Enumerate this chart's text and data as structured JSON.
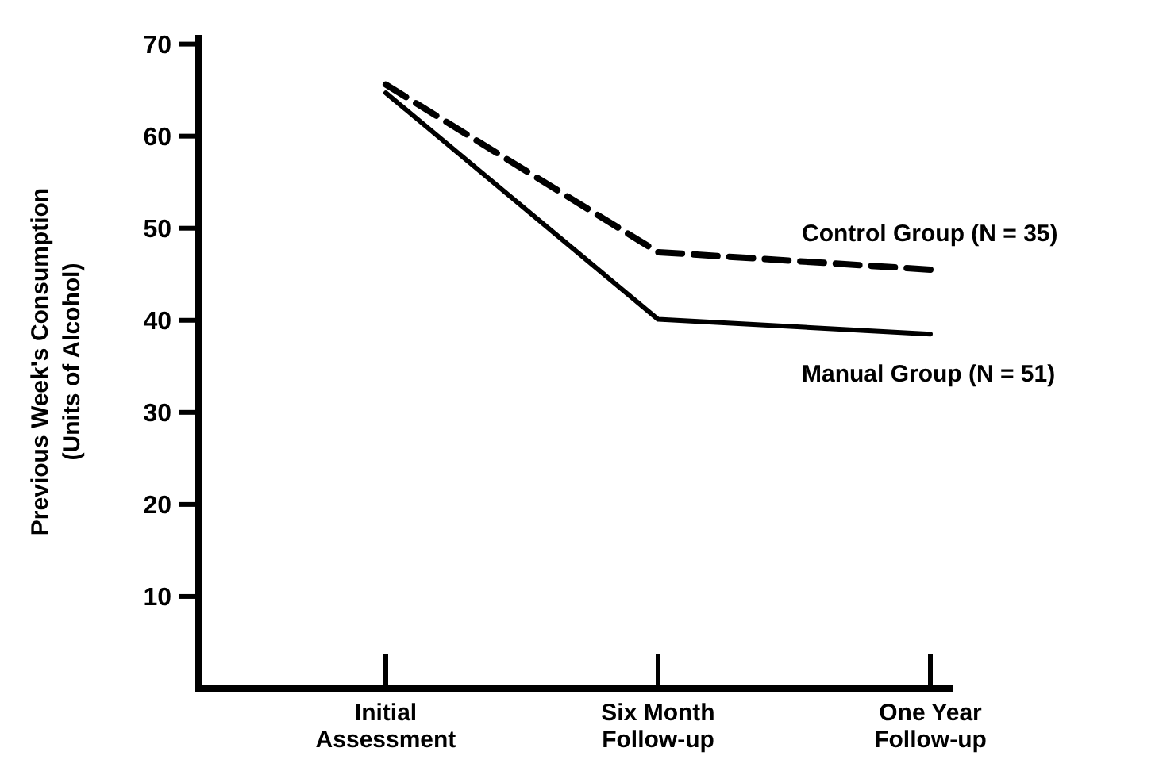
{
  "chart_data": {
    "type": "line",
    "ylabel": "Previous Week's Consumption\n(Units of Alcohol)",
    "categories": [
      "Initial\nAssessment",
      "Six Month\nFollow-up",
      "One Year\nFollow-up"
    ],
    "ylim": [
      0,
      71
    ],
    "yticks": [
      10,
      20,
      30,
      40,
      50,
      60,
      70
    ],
    "grid": false,
    "legend": false,
    "marker": "none",
    "series": [
      {
        "name": "Control Group (N = 35)",
        "color": "#000000",
        "line_style": "dashed",
        "values": [
          65.6,
          47.4,
          45.5
        ]
      },
      {
        "name": "Manual Group (N = 51)",
        "color": "#000000",
        "line_style": "solid",
        "values": [
          64.7,
          40.1,
          38.5
        ]
      }
    ]
  }
}
